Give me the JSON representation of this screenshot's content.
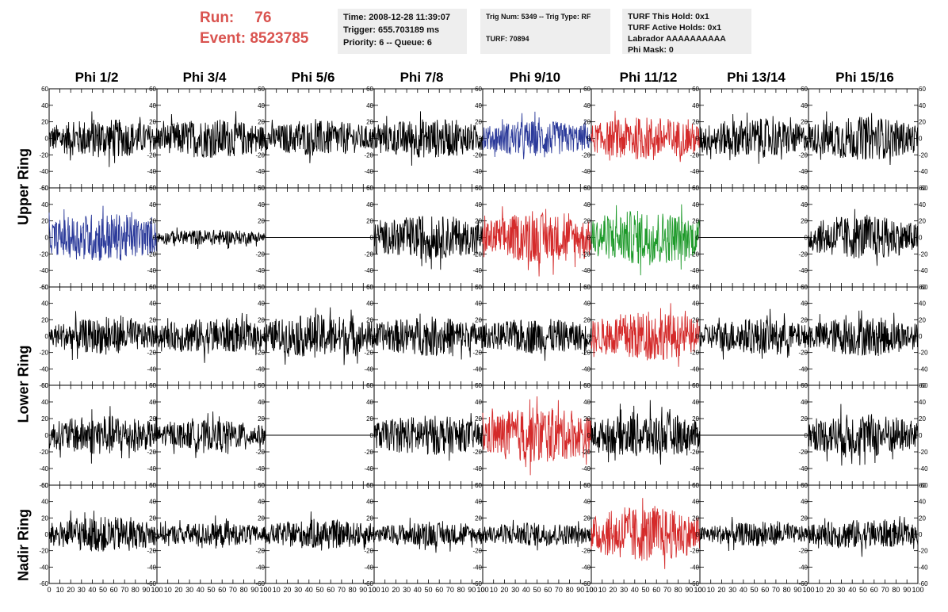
{
  "header": {
    "run_label": "Run:",
    "run_value": "76",
    "event_label": "Event:",
    "event_value": "8523785"
  },
  "panel_time": {
    "time": "Time: 2008-12-28 11:39:07",
    "trigger": "Trigger: 655.703189 ms",
    "priority": "Priority: 6 -- Queue: 6"
  },
  "panel_trig": {
    "trig": "Trig Num: 5349 -- Trig Type: RF",
    "turf": "TURF: 70894"
  },
  "panel_turf": {
    "hold": "TURF This Hold: 0x1",
    "active": "TURF Active Holds: 0x1",
    "labrador": "Labrador AAAAAAAAAA",
    "phimask": "Phi Mask: 0"
  },
  "columns": [
    "Phi 1/2",
    "Phi 3/4",
    "Phi 5/6",
    "Phi 7/8",
    "Phi 9/10",
    "Phi 11/12",
    "Phi 13/14",
    "Phi 15/16"
  ],
  "ring_labels": {
    "upper": "Upper Ring",
    "lower": "Lower Ring",
    "nadir": "Nadir Ring"
  },
  "chart_data": {
    "type": "line",
    "xlim": [
      0,
      100
    ],
    "ylim": [
      -60,
      60
    ],
    "x_ticks": [
      0,
      10,
      20,
      30,
      40,
      50,
      60,
      70,
      80,
      90,
      100
    ],
    "y_ticks": [
      -60,
      -40,
      -20,
      0,
      20,
      40,
      60
    ],
    "colors": {
      "black": "#000000",
      "blue": "#2b3a9a",
      "red": "#d42a2a",
      "green": "#1e9a2a"
    },
    "rows": [
      [
        "black",
        "black",
        "black",
        "black",
        "blue",
        "red",
        "black",
        "black"
      ],
      [
        "blue",
        "black",
        "flat",
        "black",
        "red",
        "green",
        "flat",
        "black"
      ],
      [
        "black",
        "black",
        "black",
        "black",
        "black",
        "red",
        "black",
        "black"
      ],
      [
        "black",
        "black",
        "flat",
        "black",
        "red",
        "black",
        "flat",
        "black"
      ],
      [
        "black",
        "black",
        "black",
        "black",
        "black",
        "red",
        "black",
        "black"
      ]
    ],
    "amplitudes": [
      [
        20,
        20,
        18,
        20,
        18,
        22,
        20,
        22
      ],
      [
        25,
        8,
        0,
        22,
        25,
        28,
        0,
        22
      ],
      [
        18,
        18,
        22,
        20,
        18,
        25,
        18,
        20
      ],
      [
        20,
        15,
        0,
        20,
        28,
        22,
        0,
        22
      ],
      [
        18,
        12,
        15,
        12,
        12,
        28,
        12,
        15
      ]
    ]
  }
}
